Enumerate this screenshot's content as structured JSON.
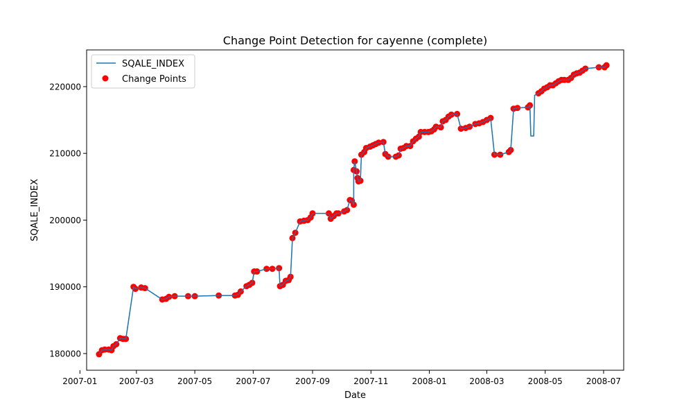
{
  "chart_data": {
    "type": "line",
    "title": "Change Point Detection for cayenne (complete)",
    "xlabel": "Date",
    "ylabel": "SQALE_INDEX",
    "xlim": [
      "2007-01-08",
      "2008-07-22"
    ],
    "ylim": [
      177500,
      225500
    ],
    "x_ticks": [
      "2007-01",
      "2007-03",
      "2007-05",
      "2007-07",
      "2007-09",
      "2007-11",
      "2008-01",
      "2008-03",
      "2008-05",
      "2008-07"
    ],
    "x_tick_dates": [
      "2007-01-01",
      "2007-03-01",
      "2007-05-01",
      "2007-07-01",
      "2007-09-01",
      "2007-11-01",
      "2008-01-01",
      "2008-03-01",
      "2008-05-01",
      "2008-07-01"
    ],
    "y_ticks": [
      180000,
      190000,
      200000,
      210000,
      220000
    ],
    "grid": false,
    "legend_position": "top-left",
    "colors": {
      "line": "#1f77b4",
      "change_points": "#ff0000"
    },
    "legend": [
      {
        "label": "SQALE_INDEX",
        "kind": "line"
      },
      {
        "label": "Change Points",
        "kind": "marker"
      }
    ],
    "series": [
      {
        "name": "SQALE_INDEX",
        "points": [
          [
            "2007-01-21",
            179900
          ],
          [
            "2007-01-24",
            180500
          ],
          [
            "2007-01-27",
            180600
          ],
          [
            "2007-01-31",
            180600
          ],
          [
            "2007-02-03",
            180500
          ],
          [
            "2007-02-05",
            181100
          ],
          [
            "2007-02-08",
            181400
          ],
          [
            "2007-02-12",
            182300
          ],
          [
            "2007-02-15",
            182200
          ],
          [
            "2007-02-18",
            182200
          ],
          [
            "2007-02-26",
            190000
          ],
          [
            "2007-02-28",
            189700
          ],
          [
            "2007-03-06",
            189900
          ],
          [
            "2007-03-10",
            189800
          ],
          [
            "2007-03-28",
            188100
          ],
          [
            "2007-04-01",
            188200
          ],
          [
            "2007-04-04",
            188500
          ],
          [
            "2007-04-10",
            188600
          ],
          [
            "2007-04-24",
            188600
          ],
          [
            "2007-05-01",
            188600
          ],
          [
            "2007-05-26",
            188700
          ],
          [
            "2007-06-12",
            188700
          ],
          [
            "2007-06-15",
            188800
          ],
          [
            "2007-06-18",
            189300
          ],
          [
            "2007-06-24",
            190100
          ],
          [
            "2007-06-27",
            190300
          ],
          [
            "2007-06-30",
            190600
          ],
          [
            "2007-07-02",
            192300
          ],
          [
            "2007-07-05",
            192300
          ],
          [
            "2007-07-15",
            192700
          ],
          [
            "2007-07-21",
            192700
          ],
          [
            "2007-07-28",
            192800
          ],
          [
            "2007-07-29",
            190100
          ],
          [
            "2007-08-01",
            190300
          ],
          [
            "2007-08-04",
            190900
          ],
          [
            "2007-08-07",
            191000
          ],
          [
            "2007-08-09",
            191500
          ],
          [
            "2007-08-11",
            197300
          ],
          [
            "2007-08-14",
            198100
          ],
          [
            "2007-08-19",
            199800
          ],
          [
            "2007-08-23",
            199900
          ],
          [
            "2007-08-27",
            200000
          ],
          [
            "2007-08-30",
            200400
          ],
          [
            "2007-09-01",
            201000
          ],
          [
            "2007-09-18",
            201000
          ],
          [
            "2007-09-20",
            200200
          ],
          [
            "2007-09-23",
            200600
          ],
          [
            "2007-09-26",
            201000
          ],
          [
            "2007-09-28",
            201000
          ],
          [
            "2007-10-04",
            201300
          ],
          [
            "2007-10-07",
            201500
          ],
          [
            "2007-10-10",
            203000
          ],
          [
            "2007-10-12",
            202900
          ],
          [
            "2007-10-14",
            202300
          ],
          [
            "2007-10-14",
            207500
          ],
          [
            "2007-10-15",
            208800
          ],
          [
            "2007-10-17",
            207300
          ],
          [
            "2007-10-18",
            206300
          ],
          [
            "2007-10-19",
            205800
          ],
          [
            "2007-10-21",
            205900
          ],
          [
            "2007-10-22",
            209800
          ],
          [
            "2007-10-25",
            210200
          ],
          [
            "2007-10-27",
            210800
          ],
          [
            "2007-10-31",
            211000
          ],
          [
            "2007-11-03",
            211200
          ],
          [
            "2007-11-06",
            211400
          ],
          [
            "2007-11-09",
            211600
          ],
          [
            "2007-11-14",
            211700
          ],
          [
            "2007-11-16",
            209900
          ],
          [
            "2007-11-19",
            209500
          ],
          [
            "2007-11-27",
            209500
          ],
          [
            "2007-11-30",
            209700
          ],
          [
            "2007-12-02",
            210700
          ],
          [
            "2007-12-05",
            210800
          ],
          [
            "2007-12-08",
            211100
          ],
          [
            "2007-12-12",
            211100
          ],
          [
            "2007-12-15",
            211800
          ],
          [
            "2007-12-18",
            212200
          ],
          [
            "2007-12-21",
            212500
          ],
          [
            "2007-12-23",
            213200
          ],
          [
            "2007-12-27",
            213200
          ],
          [
            "2007-12-31",
            213200
          ],
          [
            "2008-01-03",
            213300
          ],
          [
            "2008-01-06",
            213600
          ],
          [
            "2008-01-08",
            214000
          ],
          [
            "2008-01-13",
            213900
          ],
          [
            "2008-01-15",
            214800
          ],
          [
            "2008-01-18",
            215000
          ],
          [
            "2008-01-21",
            215500
          ],
          [
            "2008-01-24",
            215800
          ],
          [
            "2008-01-30",
            215900
          ],
          [
            "2008-02-03",
            213700
          ],
          [
            "2008-02-08",
            213800
          ],
          [
            "2008-02-12",
            214000
          ],
          [
            "2008-02-18",
            214400
          ],
          [
            "2008-02-22",
            214500
          ],
          [
            "2008-02-26",
            214700
          ],
          [
            "2008-03-01",
            215000
          ],
          [
            "2008-03-05",
            215300
          ],
          [
            "2008-03-09",
            209800
          ],
          [
            "2008-03-15",
            209800
          ],
          [
            "2008-03-24",
            210200
          ],
          [
            "2008-03-26",
            210500
          ],
          [
            "2008-03-29",
            216700
          ],
          [
            "2008-04-02",
            216800
          ],
          [
            "2008-04-13",
            216900
          ],
          [
            "2008-04-15",
            217200
          ],
          [
            "2008-04-16",
            212600
          ],
          [
            "2008-04-19",
            212600
          ],
          [
            "2008-04-20",
            218700
          ],
          [
            "2008-04-24",
            219000
          ],
          [
            "2008-04-27",
            219300
          ],
          [
            "2008-04-30",
            219700
          ],
          [
            "2008-05-03",
            219900
          ],
          [
            "2008-05-06",
            220200
          ],
          [
            "2008-05-09",
            220200
          ],
          [
            "2008-05-12",
            220500
          ],
          [
            "2008-05-15",
            220800
          ],
          [
            "2008-05-18",
            221000
          ],
          [
            "2008-05-21",
            221000
          ],
          [
            "2008-05-25",
            221000
          ],
          [
            "2008-05-28",
            221300
          ],
          [
            "2008-05-31",
            221800
          ],
          [
            "2008-06-03",
            222000
          ],
          [
            "2008-06-06",
            222100
          ],
          [
            "2008-06-09",
            222400
          ],
          [
            "2008-06-12",
            222700
          ],
          [
            "2008-06-26",
            222900
          ],
          [
            "2008-07-02",
            222900
          ],
          [
            "2008-07-04",
            223200
          ]
        ]
      },
      {
        "name": "Change Points",
        "points": [
          [
            "2007-01-21",
            179900
          ],
          [
            "2007-01-24",
            180500
          ],
          [
            "2007-01-27",
            180600
          ],
          [
            "2007-01-31",
            180600
          ],
          [
            "2007-02-03",
            180500
          ],
          [
            "2007-02-05",
            181100
          ],
          [
            "2007-02-08",
            181400
          ],
          [
            "2007-02-12",
            182300
          ],
          [
            "2007-02-15",
            182200
          ],
          [
            "2007-02-18",
            182200
          ],
          [
            "2007-02-26",
            190000
          ],
          [
            "2007-02-28",
            189700
          ],
          [
            "2007-03-06",
            189900
          ],
          [
            "2007-03-10",
            189800
          ],
          [
            "2007-03-28",
            188100
          ],
          [
            "2007-04-01",
            188200
          ],
          [
            "2007-04-04",
            188500
          ],
          [
            "2007-04-10",
            188600
          ],
          [
            "2007-04-24",
            188600
          ],
          [
            "2007-05-01",
            188600
          ],
          [
            "2007-05-26",
            188700
          ],
          [
            "2007-06-12",
            188700
          ],
          [
            "2007-06-15",
            188800
          ],
          [
            "2007-06-18",
            189300
          ],
          [
            "2007-06-24",
            190100
          ],
          [
            "2007-06-27",
            190300
          ],
          [
            "2007-06-30",
            190600
          ],
          [
            "2007-07-02",
            192300
          ],
          [
            "2007-07-05",
            192300
          ],
          [
            "2007-07-15",
            192700
          ],
          [
            "2007-07-21",
            192700
          ],
          [
            "2007-07-28",
            192800
          ],
          [
            "2007-07-29",
            190100
          ],
          [
            "2007-08-01",
            190300
          ],
          [
            "2007-08-04",
            190900
          ],
          [
            "2007-08-07",
            191000
          ],
          [
            "2007-08-09",
            191500
          ],
          [
            "2007-08-11",
            197300
          ],
          [
            "2007-08-14",
            198100
          ],
          [
            "2007-08-19",
            199800
          ],
          [
            "2007-08-23",
            199900
          ],
          [
            "2007-08-27",
            200000
          ],
          [
            "2007-08-30",
            200400
          ],
          [
            "2007-09-01",
            201000
          ],
          [
            "2007-09-18",
            201000
          ],
          [
            "2007-09-20",
            200200
          ],
          [
            "2007-09-23",
            200600
          ],
          [
            "2007-09-26",
            201000
          ],
          [
            "2007-09-28",
            201000
          ],
          [
            "2007-10-04",
            201300
          ],
          [
            "2007-10-07",
            201500
          ],
          [
            "2007-10-10",
            203000
          ],
          [
            "2007-10-12",
            202900
          ],
          [
            "2007-10-14",
            202300
          ],
          [
            "2007-10-14",
            207500
          ],
          [
            "2007-10-15",
            208800
          ],
          [
            "2007-10-17",
            207300
          ],
          [
            "2007-10-18",
            206300
          ],
          [
            "2007-10-19",
            205800
          ],
          [
            "2007-10-21",
            205900
          ],
          [
            "2007-10-22",
            209800
          ],
          [
            "2007-10-25",
            210200
          ],
          [
            "2007-10-27",
            210800
          ],
          [
            "2007-10-31",
            211000
          ],
          [
            "2007-11-03",
            211200
          ],
          [
            "2007-11-06",
            211400
          ],
          [
            "2007-11-09",
            211600
          ],
          [
            "2007-11-14",
            211700
          ],
          [
            "2007-11-16",
            209900
          ],
          [
            "2007-11-19",
            209500
          ],
          [
            "2007-11-27",
            209500
          ],
          [
            "2007-11-30",
            209700
          ],
          [
            "2007-12-02",
            210700
          ],
          [
            "2007-12-05",
            210800
          ],
          [
            "2007-12-08",
            211100
          ],
          [
            "2007-12-12",
            211100
          ],
          [
            "2007-12-15",
            211800
          ],
          [
            "2007-12-18",
            212200
          ],
          [
            "2007-12-21",
            212500
          ],
          [
            "2007-12-23",
            213200
          ],
          [
            "2007-12-27",
            213200
          ],
          [
            "2007-12-31",
            213200
          ],
          [
            "2008-01-03",
            213300
          ],
          [
            "2008-01-06",
            213600
          ],
          [
            "2008-01-08",
            214000
          ],
          [
            "2008-01-13",
            213900
          ],
          [
            "2008-01-15",
            214800
          ],
          [
            "2008-01-18",
            215000
          ],
          [
            "2008-01-21",
            215500
          ],
          [
            "2008-01-24",
            215800
          ],
          [
            "2008-01-30",
            215900
          ],
          [
            "2008-02-03",
            213700
          ],
          [
            "2008-02-08",
            213800
          ],
          [
            "2008-02-12",
            214000
          ],
          [
            "2008-02-18",
            214400
          ],
          [
            "2008-02-22",
            214500
          ],
          [
            "2008-02-26",
            214700
          ],
          [
            "2008-03-01",
            215000
          ],
          [
            "2008-03-05",
            215300
          ],
          [
            "2008-03-09",
            209800
          ],
          [
            "2008-03-15",
            209800
          ],
          [
            "2008-03-24",
            210200
          ],
          [
            "2008-03-26",
            210500
          ],
          [
            "2008-03-29",
            216700
          ],
          [
            "2008-04-02",
            216800
          ],
          [
            "2008-04-13",
            216900
          ],
          [
            "2008-04-15",
            217200
          ],
          [
            "2008-04-24",
            219000
          ],
          [
            "2008-04-27",
            219300
          ],
          [
            "2008-04-30",
            219700
          ],
          [
            "2008-05-03",
            219900
          ],
          [
            "2008-05-06",
            220200
          ],
          [
            "2008-05-09",
            220200
          ],
          [
            "2008-05-12",
            220500
          ],
          [
            "2008-05-15",
            220800
          ],
          [
            "2008-05-18",
            221000
          ],
          [
            "2008-05-21",
            221000
          ],
          [
            "2008-05-25",
            221000
          ],
          [
            "2008-05-28",
            221300
          ],
          [
            "2008-05-31",
            221800
          ],
          [
            "2008-06-03",
            222000
          ],
          [
            "2008-06-06",
            222100
          ],
          [
            "2008-06-09",
            222400
          ],
          [
            "2008-06-12",
            222700
          ],
          [
            "2008-06-26",
            222900
          ],
          [
            "2008-07-02",
            222900
          ],
          [
            "2008-07-04",
            223200
          ]
        ]
      }
    ]
  }
}
